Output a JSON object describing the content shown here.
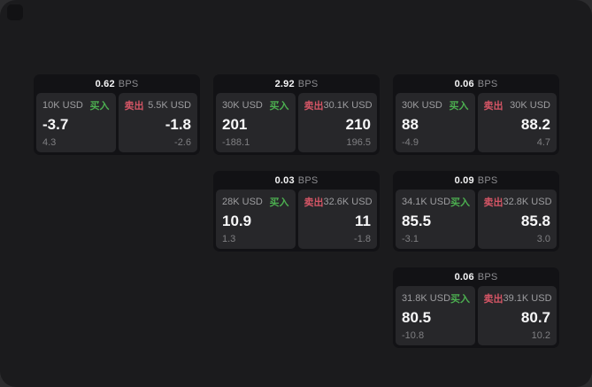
{
  "labels": {
    "buy": "买入",
    "sell": "卖出",
    "bps_unit": "BPS"
  },
  "colors": {
    "buy": "#4caf50",
    "sell": "#d45565",
    "background": "#1b1b1d",
    "card": "#121215",
    "panel": "#27272a"
  },
  "cards": [
    {
      "grid": {
        "col": 1,
        "row": 1
      },
      "bps": "0.62",
      "buy": {
        "amount": "10K USD",
        "price": "-3.7",
        "change": "4.3"
      },
      "sell": {
        "amount": "5.5K USD",
        "price": "-1.8",
        "change": "-2.6"
      }
    },
    {
      "grid": {
        "col": 2,
        "row": 1
      },
      "bps": "2.92",
      "buy": {
        "amount": "30K USD",
        "price": "201",
        "change": "-188.1"
      },
      "sell": {
        "amount": "30.1K USD",
        "price": "210",
        "change": "196.5"
      }
    },
    {
      "grid": {
        "col": 3,
        "row": 1
      },
      "bps": "0.06",
      "buy": {
        "amount": "30K USD",
        "price": "88",
        "change": "-4.9"
      },
      "sell": {
        "amount": "30K USD",
        "price": "88.2",
        "change": "4.7"
      }
    },
    {
      "grid": {
        "col": 2,
        "row": 2
      },
      "bps": "0.03",
      "buy": {
        "amount": "28K USD",
        "price": "10.9",
        "change": "1.3"
      },
      "sell": {
        "amount": "32.6K USD",
        "price": "11",
        "change": "-1.8"
      }
    },
    {
      "grid": {
        "col": 3,
        "row": 2
      },
      "bps": "0.09",
      "buy": {
        "amount": "34.1K USD",
        "price": "85.5",
        "change": "-3.1"
      },
      "sell": {
        "amount": "32.8K USD",
        "price": "85.8",
        "change": "3.0"
      }
    },
    {
      "grid": {
        "col": 3,
        "row": 3
      },
      "bps": "0.06",
      "buy": {
        "amount": "31.8K USD",
        "price": "80.5",
        "change": "-10.8"
      },
      "sell": {
        "amount": "39.1K USD",
        "price": "80.7",
        "change": "10.2"
      }
    }
  ]
}
